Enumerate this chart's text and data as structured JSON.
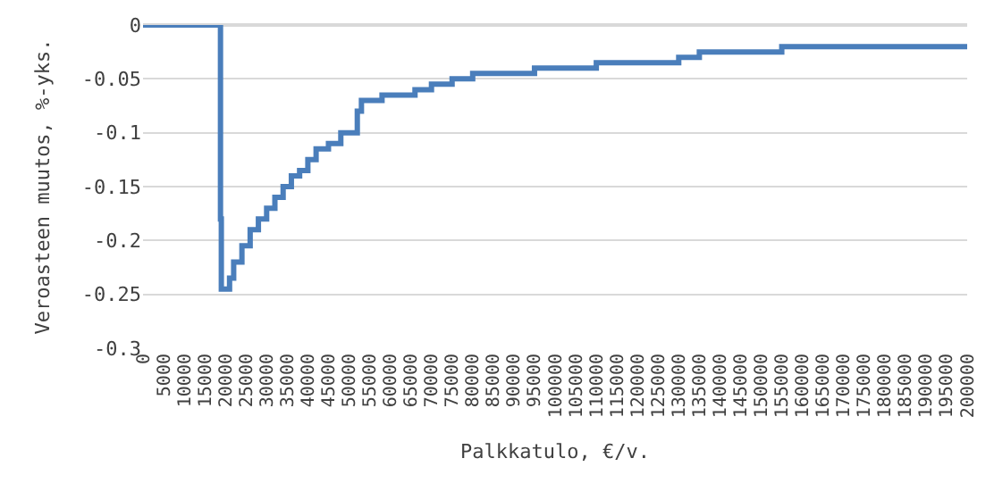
{
  "chart_data": {
    "type": "step",
    "xlabel": "Palkkatulo, €/v.",
    "ylabel": "Veroasteen muutos, %-yks.",
    "x": [
      0,
      18800,
      19000,
      20000,
      21000,
      22000,
      24000,
      26000,
      28000,
      30000,
      32000,
      34000,
      36000,
      38000,
      40000,
      42000,
      45000,
      48000,
      51000,
      52000,
      53000,
      56000,
      58000,
      62000,
      66000,
      70000,
      75000,
      80000,
      90000,
      95000,
      110000,
      130000,
      135000,
      155000,
      200000
    ],
    "series": [
      {
        "color": "#4a7ebb",
        "values": [
          0,
          -0.18,
          -0.245,
          -0.245,
          -0.235,
          -0.22,
          -0.205,
          -0.19,
          -0.18,
          -0.17,
          -0.16,
          -0.15,
          -0.14,
          -0.135,
          -0.125,
          -0.115,
          -0.11,
          -0.1,
          -0.1,
          -0.08,
          -0.07,
          -0.07,
          -0.065,
          -0.065,
          -0.06,
          -0.055,
          -0.05,
          -0.045,
          -0.045,
          -0.04,
          -0.035,
          -0.03,
          -0.025,
          -0.02,
          -0.02
        ]
      }
    ],
    "xlim": [
      0,
      200000
    ],
    "xticks": [
      0,
      5000,
      10000,
      15000,
      20000,
      25000,
      30000,
      35000,
      40000,
      45000,
      50000,
      55000,
      60000,
      65000,
      70000,
      75000,
      80000,
      85000,
      90000,
      95000,
      100000,
      105000,
      110000,
      115000,
      120000,
      125000,
      130000,
      135000,
      140000,
      145000,
      150000,
      155000,
      160000,
      165000,
      170000,
      175000,
      180000,
      185000,
      190000,
      195000,
      200000
    ],
    "ylim": [
      -0.3,
      0
    ],
    "yticks": [
      0,
      {
        "value": -0.05,
        "label": "-0.05"
      },
      {
        "value": -0.1,
        "label": "-0.1"
      },
      {
        "value": -0.15,
        "label": "-0.15"
      },
      {
        "value": -0.2,
        "label": "-0.2"
      },
      {
        "value": -0.25,
        "label": "-0.25"
      },
      {
        "value": -0.3,
        "label": "-0.3"
      }
    ],
    "grid": "y",
    "legend": false,
    "marker": "none",
    "line_style": "solid"
  }
}
